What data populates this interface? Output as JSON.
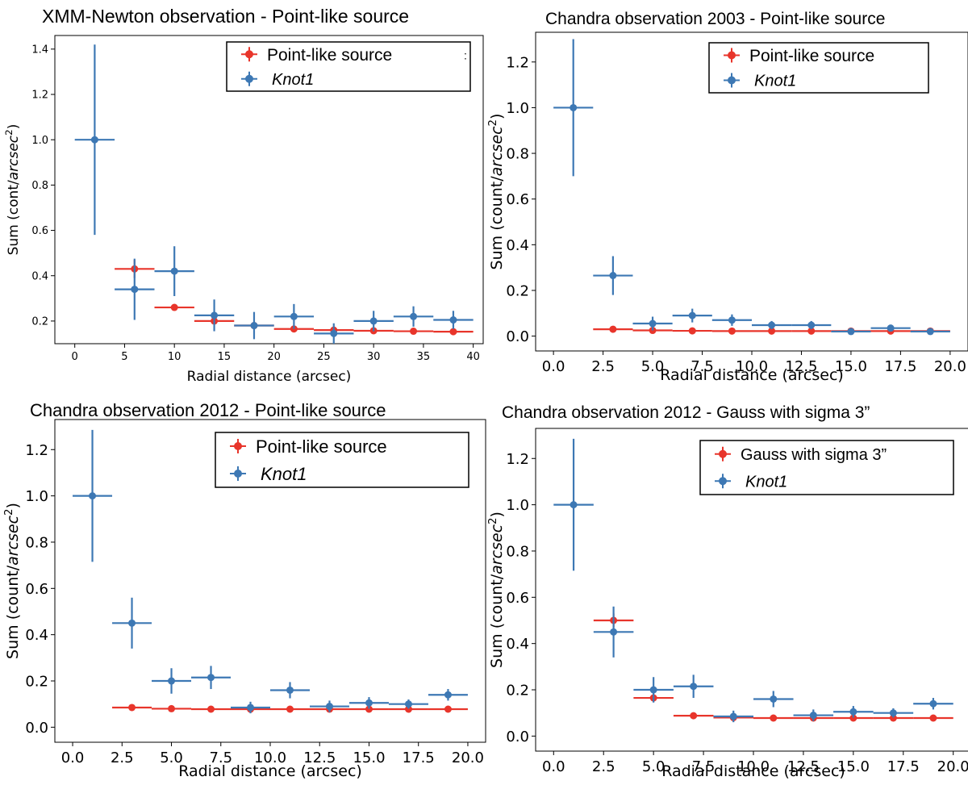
{
  "colors": {
    "red": "#e8352b",
    "blue": "#3d78b4"
  },
  "chart_data": [
    {
      "type": "scatter",
      "title": "XMM-Newton observation - Point-like source",
      "xlabel": "Radial distance (arcsec)",
      "ylabel_main": "Sum (cont/",
      "ylabel_italic": "arcsec",
      "ylabel_sup": "2",
      "ylabel_close": ")",
      "xlim": [
        -2,
        41
      ],
      "ylim": [
        0.1,
        1.46
      ],
      "xticks": [
        0,
        5,
        10,
        15,
        20,
        25,
        30,
        35,
        40
      ],
      "xtick_labels": [
        "0",
        "5",
        "10",
        "15",
        "20",
        "25",
        "30",
        "35",
        "40"
      ],
      "yticks": [
        0.2,
        0.4,
        0.6,
        0.8,
        1.0,
        1.2,
        1.4
      ],
      "ytick_labels": [
        "0.2",
        "0.4",
        "0.6",
        "0.8",
        "1.0",
        "1.2",
        "1.4"
      ],
      "legend": [
        {
          "label": "Point-like source",
          "italic": false
        },
        {
          "label": "Knot1",
          "italic": true
        }
      ],
      "legend_extra_mark": ":",
      "series": [
        {
          "name": "Point-like source",
          "color": "red",
          "xerr": 2,
          "x": [
            6,
            10,
            14,
            18,
            22,
            26,
            30,
            34,
            38
          ],
          "y": [
            0.43,
            0.26,
            0.2,
            0.18,
            0.165,
            0.16,
            0.157,
            0.155,
            0.153
          ],
          "yerr": [
            0.04,
            0.01,
            0.01,
            0.005,
            0.005,
            0.005,
            0.005,
            0.005,
            0.005
          ]
        },
        {
          "name": "Knot1",
          "color": "blue",
          "xerr": 2,
          "x": [
            2,
            6,
            10,
            14,
            18,
            22,
            26,
            30,
            34,
            38
          ],
          "y": [
            1.0,
            0.34,
            0.42,
            0.225,
            0.18,
            0.22,
            0.145,
            0.2,
            0.22,
            0.205
          ],
          "yerr": [
            0.42,
            0.135,
            0.11,
            0.07,
            0.06,
            0.055,
            0.045,
            0.045,
            0.045,
            0.04
          ]
        }
      ]
    },
    {
      "type": "scatter",
      "title": "Chandra observation 2003 - Point-like source",
      "xlabel": "Radial distance (arcsec)",
      "ylabel_main": "Sum (count/",
      "ylabel_italic": "arcsec",
      "ylabel_sup": "2",
      "ylabel_close": ")",
      "xlim": [
        -0.9,
        20.9
      ],
      "ylim": [
        -0.065,
        1.33
      ],
      "xticks": [
        0,
        2.5,
        5,
        7.5,
        10,
        12.5,
        15,
        17.5,
        20
      ],
      "xtick_labels": [
        "0.0",
        "2.5",
        "5.0",
        "7.5",
        "10.0",
        "12.5",
        "15.0",
        "17.5",
        "20.0"
      ],
      "yticks": [
        0.0,
        0.2,
        0.4,
        0.6,
        0.8,
        1.0,
        1.2
      ],
      "ytick_labels": [
        "0.0",
        "0.2",
        "0.4",
        "0.6",
        "0.8",
        "1.0",
        "1.2"
      ],
      "legend": [
        {
          "label": "Point-like source",
          "italic": false
        },
        {
          "label": "Knot1",
          "italic": true
        }
      ],
      "series": [
        {
          "name": "Point-like source",
          "color": "red",
          "xerr": 1,
          "x": [
            3,
            5,
            7,
            9,
            11,
            13,
            15,
            17,
            19
          ],
          "y": [
            0.03,
            0.025,
            0.023,
            0.022,
            0.022,
            0.022,
            0.022,
            0.022,
            0.022
          ],
          "yerr": [
            0.005,
            0.004,
            0.004,
            0.003,
            0.003,
            0.003,
            0.003,
            0.003,
            0.003
          ]
        },
        {
          "name": "Knot1",
          "color": "blue",
          "xerr": 1,
          "x": [
            1,
            3,
            5,
            7,
            9,
            11,
            13,
            15,
            17,
            19
          ],
          "y": [
            1.0,
            0.265,
            0.055,
            0.09,
            0.07,
            0.048,
            0.048,
            0.02,
            0.035,
            0.02
          ],
          "yerr": [
            0.3,
            0.085,
            0.03,
            0.03,
            0.025,
            0.018,
            0.018,
            0.012,
            0.014,
            0.012
          ]
        }
      ]
    },
    {
      "type": "scatter",
      "title": "Chandra observation 2012 - Point-like source",
      "xlabel": "Radial distance (arcsec)",
      "ylabel_main": "Sum (count/",
      "ylabel_italic": "arcsec",
      "ylabel_sup": "2",
      "ylabel_close": ")",
      "xlim": [
        -0.9,
        20.9
      ],
      "ylim": [
        -0.065,
        1.33
      ],
      "xticks": [
        0,
        2.5,
        5,
        7.5,
        10,
        12.5,
        15,
        17.5,
        20
      ],
      "xtick_labels": [
        "0.0",
        "2.5",
        "5.0",
        "7.5",
        "10.0",
        "12.5",
        "15.0",
        "17.5",
        "20.0"
      ],
      "yticks": [
        0.0,
        0.2,
        0.4,
        0.6,
        0.8,
        1.0,
        1.2
      ],
      "ytick_labels": [
        "0.0",
        "0.2",
        "0.4",
        "0.6",
        "0.8",
        "1.0",
        "1.2"
      ],
      "legend": [
        {
          "label": "Point-like source",
          "italic": false
        },
        {
          "label": "Knot1",
          "italic": true
        }
      ],
      "series": [
        {
          "name": "Point-like source",
          "color": "red",
          "xerr": 1,
          "x": [
            3,
            5,
            7,
            9,
            11,
            13,
            15,
            17,
            19
          ],
          "y": [
            0.085,
            0.08,
            0.078,
            0.078,
            0.078,
            0.078,
            0.078,
            0.078,
            0.078
          ],
          "yerr": [
            0.005,
            0.004,
            0.004,
            0.004,
            0.004,
            0.004,
            0.004,
            0.004,
            0.004
          ]
        },
        {
          "name": "Knot1",
          "color": "blue",
          "xerr": 1,
          "x": [
            1,
            3,
            5,
            7,
            9,
            11,
            13,
            15,
            17,
            19
          ],
          "y": [
            1.0,
            0.45,
            0.2,
            0.215,
            0.085,
            0.16,
            0.09,
            0.105,
            0.1,
            0.14
          ],
          "yerr": [
            0.285,
            0.11,
            0.055,
            0.05,
            0.025,
            0.035,
            0.025,
            0.025,
            0.02,
            0.025
          ]
        }
      ]
    },
    {
      "type": "scatter",
      "title": "Chandra observation 2012 - Gauss with sigma 3”",
      "xlabel": "Radial distance (arcsec)",
      "ylabel_main": "Sum (count/",
      "ylabel_italic": "arcsec",
      "ylabel_sup": "2",
      "ylabel_close": ")",
      "xlim": [
        -0.9,
        20.9
      ],
      "ylim": [
        -0.065,
        1.33
      ],
      "xticks": [
        0,
        2.5,
        5,
        7.5,
        10,
        12.5,
        15,
        17.5,
        20
      ],
      "xtick_labels": [
        "0.0",
        "2.5",
        "5.0",
        "7.5",
        "10.0",
        "12.5",
        "15.0",
        "17.5",
        "20.0"
      ],
      "yticks": [
        0.0,
        0.2,
        0.4,
        0.6,
        0.8,
        1.0,
        1.2
      ],
      "ytick_labels": [
        "0.0",
        "0.2",
        "0.4",
        "0.6",
        "0.8",
        "1.0",
        "1.2"
      ],
      "legend": [
        {
          "label": "Gauss with sigma 3”",
          "italic": false
        },
        {
          "label": "Knot1",
          "italic": true
        }
      ],
      "series": [
        {
          "name": "Gauss with sigma 3”",
          "color": "red",
          "xerr": 1,
          "x": [
            3,
            5,
            7,
            9,
            11,
            13,
            15,
            17,
            19
          ],
          "y": [
            0.5,
            0.165,
            0.088,
            0.08,
            0.078,
            0.078,
            0.078,
            0.078,
            0.078
          ],
          "yerr": [
            0.03,
            0.012,
            0.006,
            0.005,
            0.004,
            0.004,
            0.004,
            0.004,
            0.004
          ]
        },
        {
          "name": "Knot1",
          "color": "blue",
          "xerr": 1,
          "x": [
            1,
            3,
            5,
            7,
            9,
            11,
            13,
            15,
            17,
            19
          ],
          "y": [
            1.0,
            0.45,
            0.2,
            0.215,
            0.085,
            0.16,
            0.09,
            0.105,
            0.1,
            0.14
          ],
          "yerr": [
            0.285,
            0.11,
            0.055,
            0.05,
            0.025,
            0.035,
            0.025,
            0.025,
            0.02,
            0.025
          ]
        }
      ]
    }
  ]
}
